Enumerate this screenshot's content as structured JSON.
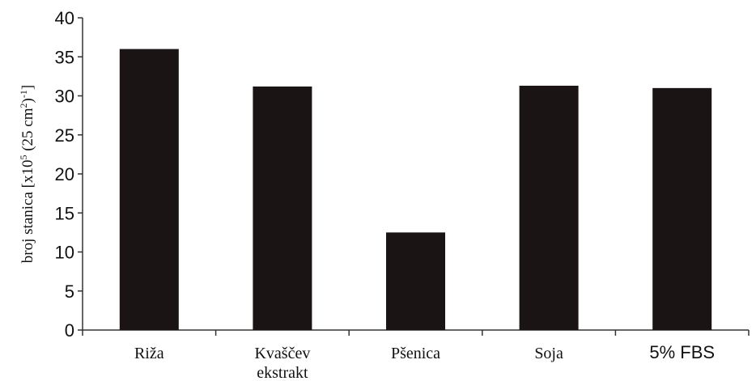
{
  "chart_data": {
    "type": "bar",
    "categories": [
      "Riža",
      "Kvaščev ekstrakt",
      "Pšenica",
      "Soja",
      "5% FBS"
    ],
    "category_lines": [
      [
        "Riža"
      ],
      [
        "Kvaščev",
        "ekstrakt"
      ],
      [
        "Pšenica"
      ],
      [
        "Soja"
      ],
      [
        "5% FBS"
      ]
    ],
    "values": [
      36,
      31.2,
      12.5,
      31.3,
      31.0
    ],
    "ylabel": {
      "text_before_exp1": "broj stanica [x10",
      "exp1": "5",
      "text_mid": " (25 cm",
      "exp2": "2",
      "text_after": ")",
      "exp3": "-1",
      "text_end": "]"
    },
    "xlabel": "",
    "title": "",
    "ylim": [
      0,
      40
    ],
    "yticks": [
      0,
      5,
      10,
      15,
      20,
      25,
      30,
      35,
      40
    ],
    "grid": false,
    "colors": {
      "bar": "#1a1414",
      "axis": "#333333"
    }
  }
}
